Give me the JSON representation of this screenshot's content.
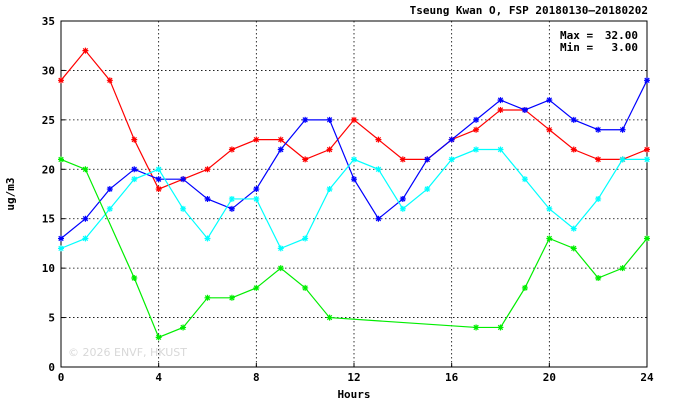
{
  "chart_data": {
    "type": "line",
    "title": "Tseung Kwan O, FSP 20180130–20180202",
    "xlabel": "Hours",
    "ylabel": "ug/m3",
    "xlim": [
      0,
      24
    ],
    "ylim": [
      0,
      35
    ],
    "xticks": [
      "0",
      "4",
      "8",
      "12",
      "16",
      "20",
      "24"
    ],
    "yticks": [
      "0",
      "5",
      "10",
      "15",
      "20",
      "25",
      "30",
      "35"
    ],
    "grid": true,
    "stats": {
      "max_label": "Max =",
      "max_value": "32.00",
      "min_label": "Min =",
      "min_value": "3.00"
    },
    "watermark": "© 2026  ENVF, HKUST",
    "series": [
      {
        "color": "#ff0000",
        "x": [
          0,
          1,
          2,
          3,
          4,
          5,
          6,
          7,
          8,
          9,
          10,
          11,
          12,
          13,
          14,
          15,
          16,
          17,
          18,
          19,
          20,
          21,
          22,
          23,
          24
        ],
        "y": [
          29,
          32,
          29,
          23,
          18,
          19,
          20,
          22,
          23,
          23,
          21,
          22,
          25,
          23,
          21,
          21,
          23,
          24,
          26,
          26,
          24,
          22,
          21,
          21,
          22
        ]
      },
      {
        "color": "#0000ff",
        "x": [
          0,
          1,
          2,
          3,
          4,
          5,
          6,
          7,
          8,
          9,
          10,
          11,
          12,
          13,
          14,
          15,
          16,
          17,
          18,
          19,
          20,
          21,
          22,
          23,
          24
        ],
        "y": [
          13,
          15,
          18,
          20,
          19,
          19,
          17,
          16,
          18,
          22,
          25,
          25,
          19,
          15,
          17,
          21,
          23,
          25,
          27,
          26,
          27,
          25,
          24,
          24,
          29
        ]
      },
      {
        "color": "#00ffff",
        "x": [
          0,
          1,
          2,
          3,
          4,
          5,
          6,
          7,
          8,
          9,
          10,
          11,
          12,
          13,
          14,
          15,
          16,
          17,
          18,
          19,
          20,
          21,
          22,
          23,
          24
        ],
        "y": [
          12,
          13,
          16,
          19,
          20,
          16,
          13,
          17,
          17,
          12,
          13,
          18,
          21,
          20,
          16,
          18,
          21,
          22,
          22,
          19,
          16,
          14,
          17,
          21,
          21
        ]
      },
      {
        "color": "#00ee00",
        "x": [
          0,
          1,
          3,
          4,
          5,
          6,
          7,
          8,
          9,
          10,
          11,
          17,
          18,
          19,
          20,
          21,
          22,
          23,
          24
        ],
        "y": [
          21,
          20,
          9,
          3,
          4,
          7,
          7,
          8,
          10,
          8,
          5,
          4,
          4,
          8,
          13,
          12,
          9,
          10,
          13
        ]
      }
    ]
  }
}
